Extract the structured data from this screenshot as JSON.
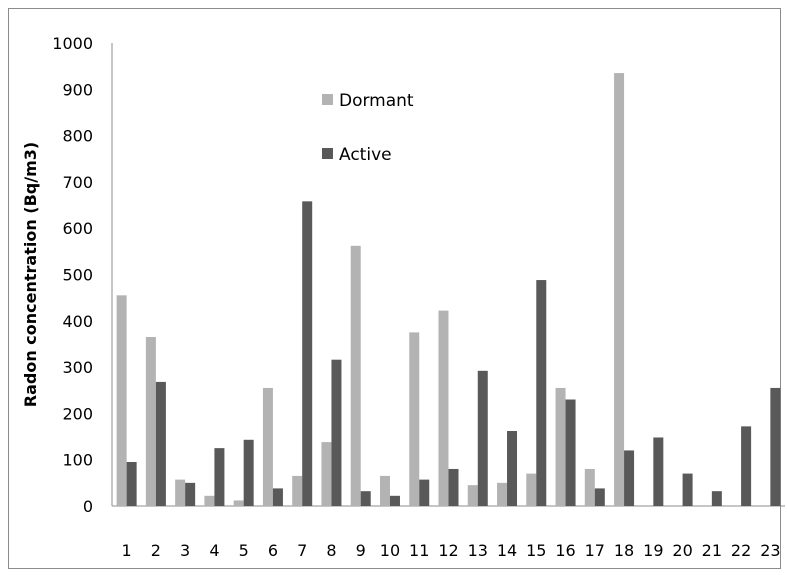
{
  "chart_data": {
    "type": "bar",
    "title": "",
    "xlabel": "",
    "ylabel": "Radon concentration (Bq/m3)",
    "ylim": [
      0,
      1000
    ],
    "yticks": [
      0,
      100,
      200,
      300,
      400,
      500,
      600,
      700,
      800,
      900,
      1000
    ],
    "grid": false,
    "legend_position": "top-center",
    "categories": [
      "1",
      "2",
      "3",
      "4",
      "5",
      "6",
      "7",
      "8",
      "9",
      "10",
      "11",
      "12",
      "13",
      "14",
      "15",
      "16",
      "17",
      "18",
      "19",
      "20",
      "21",
      "22",
      "23"
    ],
    "series": [
      {
        "name": "Dormant",
        "color": "#b3b3b3",
        "values": [
          455,
          365,
          57,
          22,
          12,
          255,
          65,
          138,
          562,
          65,
          375,
          422,
          45,
          50,
          70,
          255,
          80,
          935,
          0,
          0,
          0,
          0,
          0
        ]
      },
      {
        "name": "Active",
        "color": "#595959",
        "values": [
          95,
          268,
          50,
          125,
          143,
          38,
          658,
          316,
          32,
          22,
          57,
          80,
          292,
          162,
          488,
          230,
          38,
          120,
          148,
          70,
          32,
          172,
          255
        ]
      }
    ]
  }
}
